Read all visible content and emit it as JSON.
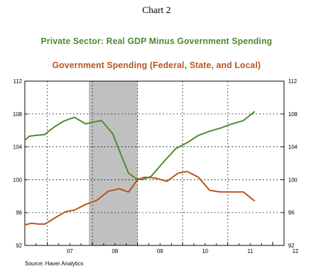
{
  "title": "Chart 2",
  "source": "Source: Haver Analytics",
  "colors": {
    "series1": "#4a8a2a",
    "series2": "#b8531c",
    "recession": "#c0c0c0",
    "grid": "#000000"
  },
  "chart_data": {
    "type": "line",
    "x_ticks": [
      "07",
      "08",
      "09",
      "10",
      "11",
      "12"
    ],
    "xlim": [
      2006.5,
      2012.25
    ],
    "ylim": [
      92,
      112
    ],
    "y_ticks": [
      92,
      96,
      100,
      104,
      108,
      112
    ],
    "grid": "dashed, x at year boundaries 2007–2011, y at 96/100/104/108",
    "legend_placement": "above plot",
    "recession_band": [
      2007.92,
      2009.0
    ],
    "series": [
      {
        "name": "Private Sector:  Real GDP Minus Government Spending",
        "color": "#4a8a2a",
        "x": [
          2006.5,
          2006.6,
          2006.75,
          2006.94,
          2007.15,
          2007.35,
          2007.6,
          2007.85,
          2008.0,
          2008.2,
          2008.45,
          2008.65,
          2008.8,
          2008.95,
          2009.1,
          2009.3,
          2009.6,
          2009.85,
          2010.1,
          2010.35,
          2010.6,
          2010.85,
          2011.1,
          2011.35,
          2011.6
        ],
        "values": [
          104.8,
          105.3,
          105.4,
          105.5,
          106.4,
          107.1,
          107.6,
          106.8,
          107.0,
          107.2,
          105.6,
          102.8,
          100.8,
          100.2,
          100.0,
          100.4,
          102.3,
          103.8,
          104.5,
          105.4,
          105.9,
          106.3,
          106.8,
          107.2,
          108.3
        ]
      },
      {
        "name": "Government Spending (Federal, State, and Local)",
        "color": "#b8531c",
        "x": [
          2006.5,
          2006.65,
          2006.8,
          2006.95,
          2007.15,
          2007.4,
          2007.6,
          2007.85,
          2008.1,
          2008.35,
          2008.6,
          2008.8,
          2009.0,
          2009.15,
          2009.4,
          2009.65,
          2009.9,
          2010.1,
          2010.35,
          2010.6,
          2010.85,
          2011.1,
          2011.35,
          2011.6
        ],
        "values": [
          94.5,
          94.7,
          94.6,
          94.6,
          95.3,
          96.1,
          96.3,
          97.0,
          97.5,
          98.6,
          98.9,
          98.5,
          100.0,
          100.3,
          100.2,
          99.8,
          100.8,
          101.0,
          100.3,
          98.7,
          98.5,
          98.5,
          98.5,
          97.4
        ]
      }
    ]
  }
}
